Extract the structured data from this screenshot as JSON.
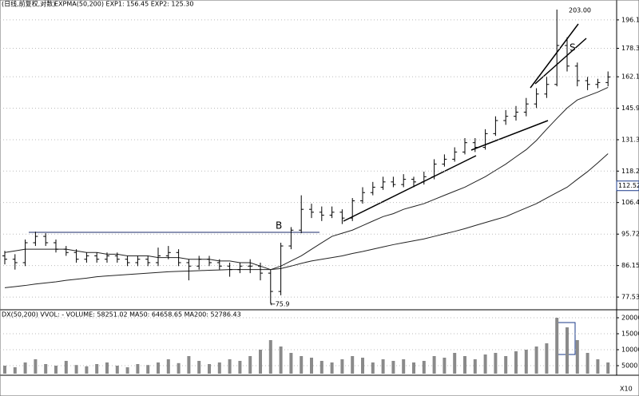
{
  "chart_data": [
    {
      "type": "ohlc",
      "header": "(日线,前复权,对数)",
      "indicator": "EXPMA(50,200)  EXP1: 156.45  EXP2: 125.30",
      "log_scale": true,
      "grid": true,
      "color": "#000000",
      "ylim": [
        74.9,
        209.6
      ],
      "yticks": [
        77.53,
        86.15,
        95.72,
        106.4,
        118.2,
        131.3,
        145.9,
        162.1,
        178.3,
        196.1
      ],
      "open": [
        89,
        88,
        87,
        93,
        95,
        93,
        91,
        90,
        88,
        89,
        88,
        89,
        88,
        87,
        88,
        87,
        89,
        90,
        87,
        86,
        88,
        87,
        86,
        85,
        86,
        86,
        84,
        79,
        92,
        97,
        104,
        103,
        102,
        103,
        101,
        107,
        110,
        112,
        114,
        113,
        115,
        114,
        116,
        121,
        123,
        126,
        130,
        128,
        134,
        140,
        142,
        144,
        148,
        153,
        158,
        180,
        168,
        160,
        158,
        159
      ],
      "high": [
        90.5,
        89.5,
        94,
        96.5,
        96,
        94,
        92,
        91,
        90,
        90,
        90,
        90,
        89,
        89,
        89,
        91.5,
        92,
        91,
        88,
        89,
        89,
        88,
        87,
        87,
        88,
        87,
        85,
        93,
        98,
        109,
        106,
        105,
        105,
        104,
        108,
        112,
        114,
        116,
        116,
        117,
        116,
        118,
        123,
        125,
        128,
        132,
        132,
        136,
        142,
        145,
        147,
        151,
        156,
        162,
        203,
        185,
        170,
        162,
        161,
        165
      ],
      "low": [
        86.5,
        85,
        86,
        92,
        92,
        90,
        89,
        87,
        87,
        87,
        87,
        87,
        86,
        86,
        86,
        86,
        88,
        86,
        82,
        85,
        86,
        85,
        83,
        84,
        84,
        82,
        75.9,
        78,
        91,
        96,
        101,
        100,
        101,
        99,
        100,
        106,
        109,
        111,
        112,
        112,
        112,
        113,
        115,
        120,
        122,
        125,
        126,
        127,
        133,
        138,
        140,
        142,
        146,
        151,
        157,
        165,
        157,
        155,
        156,
        157
      ],
      "close": [
        88,
        87,
        93,
        95,
        93,
        91,
        90,
        88,
        89,
        88,
        89,
        88,
        87,
        88,
        87,
        89,
        90,
        87,
        86,
        88,
        87,
        86,
        85,
        86,
        86,
        84,
        79,
        92,
        97,
        104,
        103,
        102,
        103,
        101,
        107,
        110,
        112,
        114,
        113,
        115,
        114,
        116,
        121,
        123,
        126,
        130,
        128,
        134,
        140,
        142,
        144,
        148,
        153,
        158,
        180,
        168,
        160,
        158,
        159,
        162
      ],
      "series": [
        {
          "color": "#222222",
          "values": [
            90,
            90.5,
            91,
            91,
            91,
            91,
            91,
            90.5,
            90,
            90,
            89.5,
            89.5,
            89,
            89,
            89,
            88.5,
            88.5,
            88.5,
            88,
            88,
            88,
            87.5,
            87.5,
            87,
            87,
            86,
            85,
            86,
            87.5,
            89,
            91,
            93,
            95,
            96,
            97,
            98.5,
            100,
            101.5,
            102.5,
            104,
            105,
            106,
            107.5,
            109,
            110.5,
            112,
            114,
            116,
            118.5,
            121,
            124,
            127,
            131,
            136,
            141,
            146,
            150,
            152,
            154,
            156.45
          ]
        },
        {
          "color": "#222222",
          "values": [
            80,
            80.3,
            80.6,
            81,
            81.3,
            81.6,
            82,
            82.3,
            82.6,
            83,
            83.2,
            83.4,
            83.6,
            83.8,
            84,
            84.2,
            84.4,
            84.5,
            84.6,
            84.7,
            84.8,
            84.9,
            85,
            85,
            85,
            85,
            85,
            85.3,
            86,
            86.8,
            87.5,
            88,
            88.5,
            89,
            89.7,
            90.3,
            91,
            91.7,
            92.4,
            93,
            93.6,
            94.2,
            95,
            95.8,
            96.6,
            97.5,
            98.5,
            99.5,
            100.5,
            101.5,
            103,
            104.5,
            106,
            108,
            110,
            112,
            115,
            118,
            121.5,
            125.3
          ]
        }
      ],
      "annotations": [
        "B",
        "S",
        "←75.9",
        "203.00"
      ],
      "price_marker": 112.52
    },
    {
      "type": "bar",
      "header": "DX(50,200)  VVOL: -  VOLUME: 58251.02  MA50: 64658.65  MA200: 52786.43",
      "color": "#8a8a8a",
      "ylim": [
        2500,
        21750
      ],
      "yticks": [
        5000,
        10000,
        15000,
        20000
      ],
      "values": [
        5000,
        4500,
        6000,
        7000,
        5500,
        5000,
        6500,
        5200,
        4800,
        5500,
        6000,
        5000,
        4500,
        5500,
        5200,
        6000,
        7000,
        5800,
        8000,
        6500,
        5500,
        6000,
        7000,
        6500,
        8000,
        10000,
        13000,
        11000,
        9000,
        8000,
        7500,
        6500,
        6000,
        7000,
        8000,
        7500,
        6000,
        7000,
        6500,
        7000,
        6000,
        6500,
        8000,
        7500,
        9000,
        8000,
        7000,
        8500,
        9000,
        8000,
        9500,
        10000,
        11000,
        12000,
        20000,
        17000,
        13000,
        9000,
        7000,
        6000
      ],
      "scale_label": "X10"
    }
  ]
}
